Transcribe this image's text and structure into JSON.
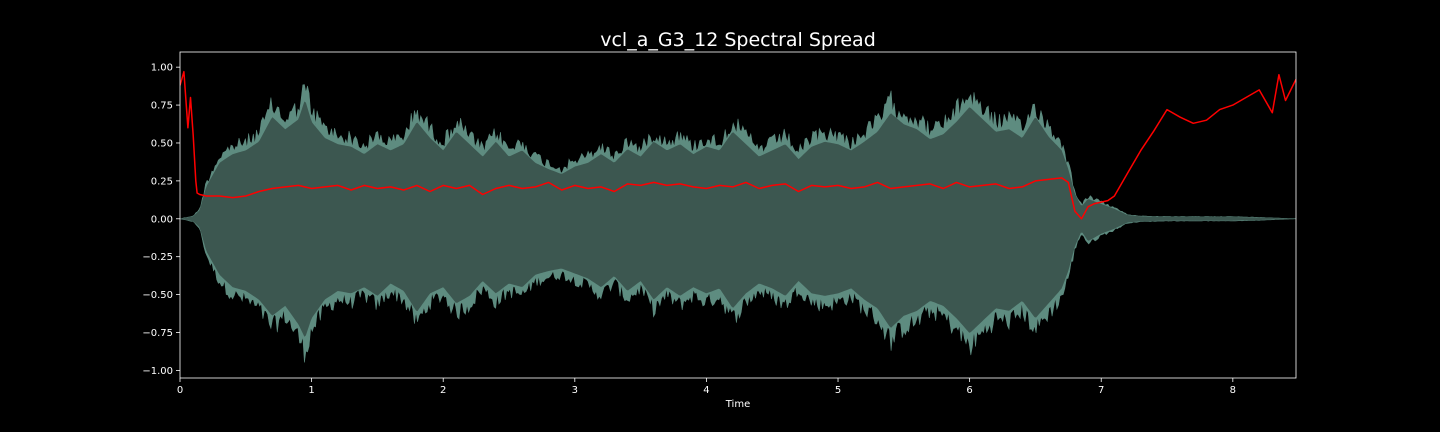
{
  "chart_data": {
    "type": "area",
    "title": "vcl_a_G3_12 Spectral Spread",
    "xlabel": "Time",
    "ylabel": "",
    "xlim": [
      0,
      8.48
    ],
    "ylim": [
      -1.05,
      1.1
    ],
    "xticks": [
      0,
      1,
      2,
      3,
      4,
      5,
      6,
      7,
      8
    ],
    "yticks": [
      -1.0,
      -0.75,
      -0.5,
      -0.25,
      0.0,
      0.25,
      0.5,
      0.75,
      1.0
    ],
    "ytick_labels": [
      "−1.00",
      "−0.75",
      "−0.50",
      "−0.25",
      "0.00",
      "0.25",
      "0.50",
      "0.75",
      "1.00"
    ],
    "grid": false,
    "series": [
      {
        "kind": "waveform-envelope",
        "color": "#5e8c80",
        "inner_color": "#3c5750",
        "x": [
          0,
          0.1,
          0.15,
          0.2,
          0.3,
          0.4,
          0.5,
          0.6,
          0.7,
          0.8,
          0.9,
          0.95,
          1.0,
          1.1,
          1.2,
          1.3,
          1.4,
          1.5,
          1.6,
          1.7,
          1.8,
          1.9,
          2.0,
          2.1,
          2.2,
          2.3,
          2.4,
          2.5,
          2.6,
          2.7,
          2.8,
          2.9,
          3.0,
          3.1,
          3.2,
          3.3,
          3.4,
          3.5,
          3.6,
          3.7,
          3.8,
          3.9,
          4.0,
          4.1,
          4.2,
          4.3,
          4.4,
          4.5,
          4.6,
          4.7,
          4.8,
          4.9,
          5.0,
          5.1,
          5.2,
          5.3,
          5.4,
          5.5,
          5.6,
          5.7,
          5.8,
          5.9,
          6.0,
          6.1,
          6.2,
          6.3,
          6.4,
          6.5,
          6.6,
          6.7,
          6.75,
          6.8,
          6.85,
          6.9,
          7.0,
          7.1,
          7.2,
          7.3,
          7.5,
          7.8,
          8.0,
          8.2,
          8.48
        ],
        "upper": [
          0.0,
          0.02,
          0.07,
          0.26,
          0.45,
          0.52,
          0.55,
          0.62,
          0.82,
          0.72,
          0.8,
          0.96,
          0.78,
          0.65,
          0.6,
          0.58,
          0.52,
          0.6,
          0.55,
          0.6,
          0.78,
          0.65,
          0.55,
          0.7,
          0.6,
          0.5,
          0.62,
          0.5,
          0.55,
          0.45,
          0.4,
          0.36,
          0.42,
          0.45,
          0.52,
          0.45,
          0.56,
          0.5,
          0.62,
          0.55,
          0.6,
          0.52,
          0.58,
          0.55,
          0.7,
          0.6,
          0.5,
          0.55,
          0.6,
          0.48,
          0.58,
          0.62,
          0.6,
          0.55,
          0.62,
          0.7,
          0.85,
          0.76,
          0.72,
          0.64,
          0.68,
          0.78,
          0.9,
          0.8,
          0.7,
          0.72,
          0.65,
          0.82,
          0.66,
          0.55,
          0.4,
          0.2,
          0.1,
          0.16,
          0.12,
          0.08,
          0.03,
          0.02,
          0.015,
          0.015,
          0.015,
          0.01,
          0.0
        ],
        "lower": [
          0.0,
          -0.02,
          -0.07,
          -0.26,
          -0.45,
          -0.55,
          -0.58,
          -0.65,
          -0.78,
          -0.7,
          -0.85,
          -0.96,
          -0.8,
          -0.65,
          -0.58,
          -0.6,
          -0.55,
          -0.62,
          -0.52,
          -0.58,
          -0.75,
          -0.6,
          -0.55,
          -0.68,
          -0.62,
          -0.5,
          -0.6,
          -0.52,
          -0.55,
          -0.45,
          -0.42,
          -0.4,
          -0.44,
          -0.48,
          -0.55,
          -0.46,
          -0.58,
          -0.5,
          -0.65,
          -0.55,
          -0.62,
          -0.55,
          -0.6,
          -0.56,
          -0.72,
          -0.6,
          -0.52,
          -0.56,
          -0.62,
          -0.5,
          -0.6,
          -0.62,
          -0.6,
          -0.56,
          -0.65,
          -0.72,
          -0.88,
          -0.78,
          -0.74,
          -0.66,
          -0.7,
          -0.8,
          -0.92,
          -0.82,
          -0.72,
          -0.74,
          -0.66,
          -0.8,
          -0.68,
          -0.56,
          -0.42,
          -0.22,
          -0.1,
          -0.18,
          -0.12,
          -0.08,
          -0.03,
          -0.02,
          -0.015,
          -0.015,
          -0.015,
          -0.01,
          0.0
        ]
      },
      {
        "kind": "line",
        "color": "#ff0000",
        "x": [
          0,
          0.03,
          0.06,
          0.08,
          0.1,
          0.12,
          0.13,
          0.15,
          0.2,
          0.3,
          0.4,
          0.5,
          0.6,
          0.7,
          0.8,
          0.9,
          1.0,
          1.1,
          1.2,
          1.3,
          1.4,
          1.5,
          1.6,
          1.7,
          1.8,
          1.9,
          2.0,
          2.1,
          2.2,
          2.3,
          2.4,
          2.5,
          2.6,
          2.7,
          2.8,
          2.9,
          3.0,
          3.1,
          3.2,
          3.3,
          3.4,
          3.5,
          3.6,
          3.7,
          3.8,
          3.9,
          4.0,
          4.1,
          4.2,
          4.3,
          4.4,
          4.5,
          4.6,
          4.7,
          4.8,
          4.9,
          5.0,
          5.1,
          5.2,
          5.3,
          5.4,
          5.5,
          5.6,
          5.7,
          5.8,
          5.9,
          6.0,
          6.1,
          6.2,
          6.3,
          6.4,
          6.5,
          6.6,
          6.7,
          6.75,
          6.8,
          6.85,
          6.9,
          6.95,
          7.0,
          7.05,
          7.1,
          7.2,
          7.3,
          7.4,
          7.5,
          7.6,
          7.7,
          7.8,
          7.9,
          8.0,
          8.1,
          8.2,
          8.3,
          8.35,
          8.4,
          8.48
        ],
        "y": [
          0.88,
          0.97,
          0.6,
          0.8,
          0.55,
          0.25,
          0.17,
          0.16,
          0.15,
          0.15,
          0.14,
          0.15,
          0.18,
          0.2,
          0.21,
          0.22,
          0.2,
          0.21,
          0.22,
          0.19,
          0.22,
          0.2,
          0.21,
          0.19,
          0.22,
          0.18,
          0.22,
          0.2,
          0.22,
          0.16,
          0.2,
          0.22,
          0.2,
          0.21,
          0.24,
          0.19,
          0.22,
          0.2,
          0.21,
          0.18,
          0.23,
          0.22,
          0.24,
          0.22,
          0.23,
          0.21,
          0.2,
          0.22,
          0.21,
          0.24,
          0.2,
          0.22,
          0.23,
          0.18,
          0.22,
          0.21,
          0.22,
          0.2,
          0.21,
          0.24,
          0.2,
          0.21,
          0.22,
          0.23,
          0.2,
          0.24,
          0.21,
          0.22,
          0.23,
          0.2,
          0.21,
          0.25,
          0.26,
          0.27,
          0.24,
          0.05,
          0.0,
          0.08,
          0.1,
          0.11,
          0.12,
          0.15,
          0.3,
          0.45,
          0.58,
          0.72,
          0.67,
          0.63,
          0.65,
          0.72,
          0.75,
          0.8,
          0.85,
          0.7,
          0.95,
          0.78,
          0.92
        ]
      }
    ]
  }
}
